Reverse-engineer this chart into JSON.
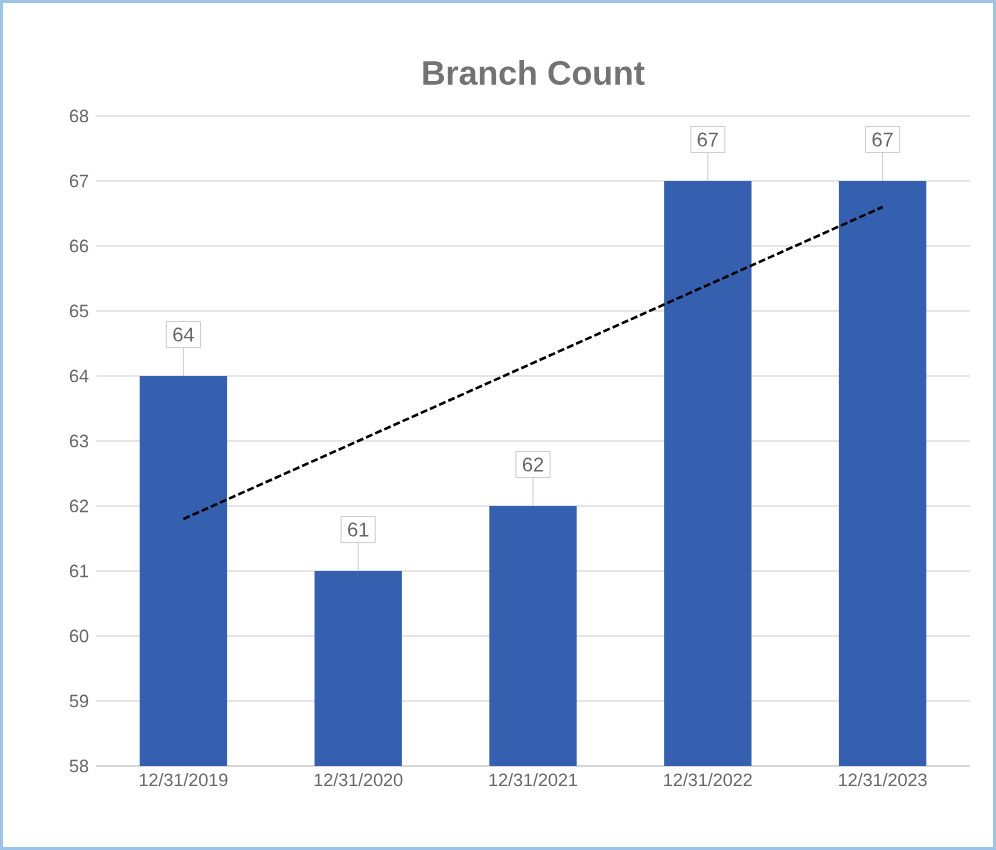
{
  "chart_data": {
    "type": "bar",
    "title": "Branch Count",
    "categories": [
      "12/31/2019",
      "12/31/2020",
      "12/31/2021",
      "12/31/2022",
      "12/31/2023"
    ],
    "series": [
      {
        "color": "#3560b0",
        "values": [
          64,
          61,
          62,
          67,
          67
        ],
        "value_labels": [
          "64",
          "61",
          "62",
          "67",
          "67"
        ]
      },
      {
        "type": "line",
        "color": "#000000",
        "line_style": "dashed",
        "values": [
          61.8,
          63.0,
          64.2,
          65.4,
          66.6
        ]
      }
    ],
    "ylim": [
      58,
      68
    ],
    "yticks": [
      58,
      59,
      60,
      61,
      62,
      63,
      64,
      65,
      66,
      67,
      68
    ],
    "grid": "y"
  }
}
